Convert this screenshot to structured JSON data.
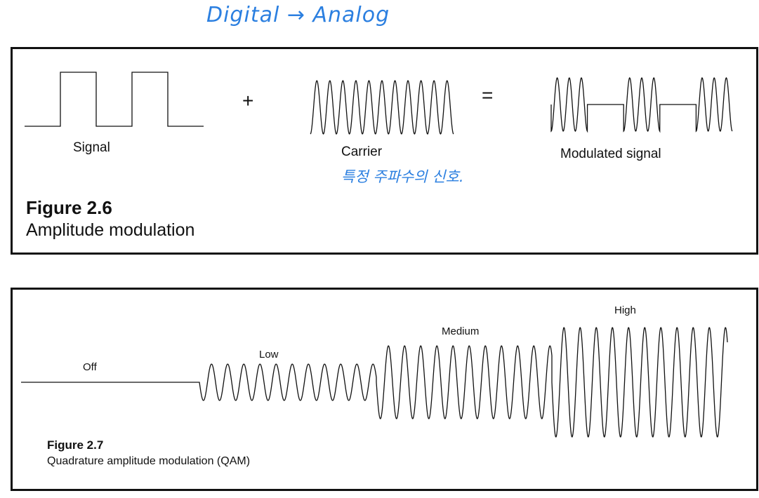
{
  "annotations": {
    "top_note": "Digital → Analog",
    "carrier_note": "특정 주파수의 신호."
  },
  "figure_2_6": {
    "number": "Figure 2.6",
    "caption": "Amplitude modulation",
    "signal_label": "Signal",
    "plus": "+",
    "carrier_label": "Carrier",
    "equals": "=",
    "modulated_label": "Modulated signal",
    "signal_bits": [
      0,
      1,
      0,
      1,
      0
    ],
    "carrier_cycles": 11,
    "modulated_bits": [
      1,
      0,
      1,
      0,
      1
    ]
  },
  "figure_2_7": {
    "number": "Figure 2.7",
    "caption": "Quadrature amplitude modulation (QAM)",
    "levels": [
      {
        "label": "Off",
        "amplitude": 0
      },
      {
        "label": "Low",
        "amplitude": 1
      },
      {
        "label": "Medium",
        "amplitude": 2
      },
      {
        "label": "High",
        "amplitude": 3
      }
    ]
  },
  "colors": {
    "ink": "#111111",
    "annotation": "#2b7fe0"
  }
}
